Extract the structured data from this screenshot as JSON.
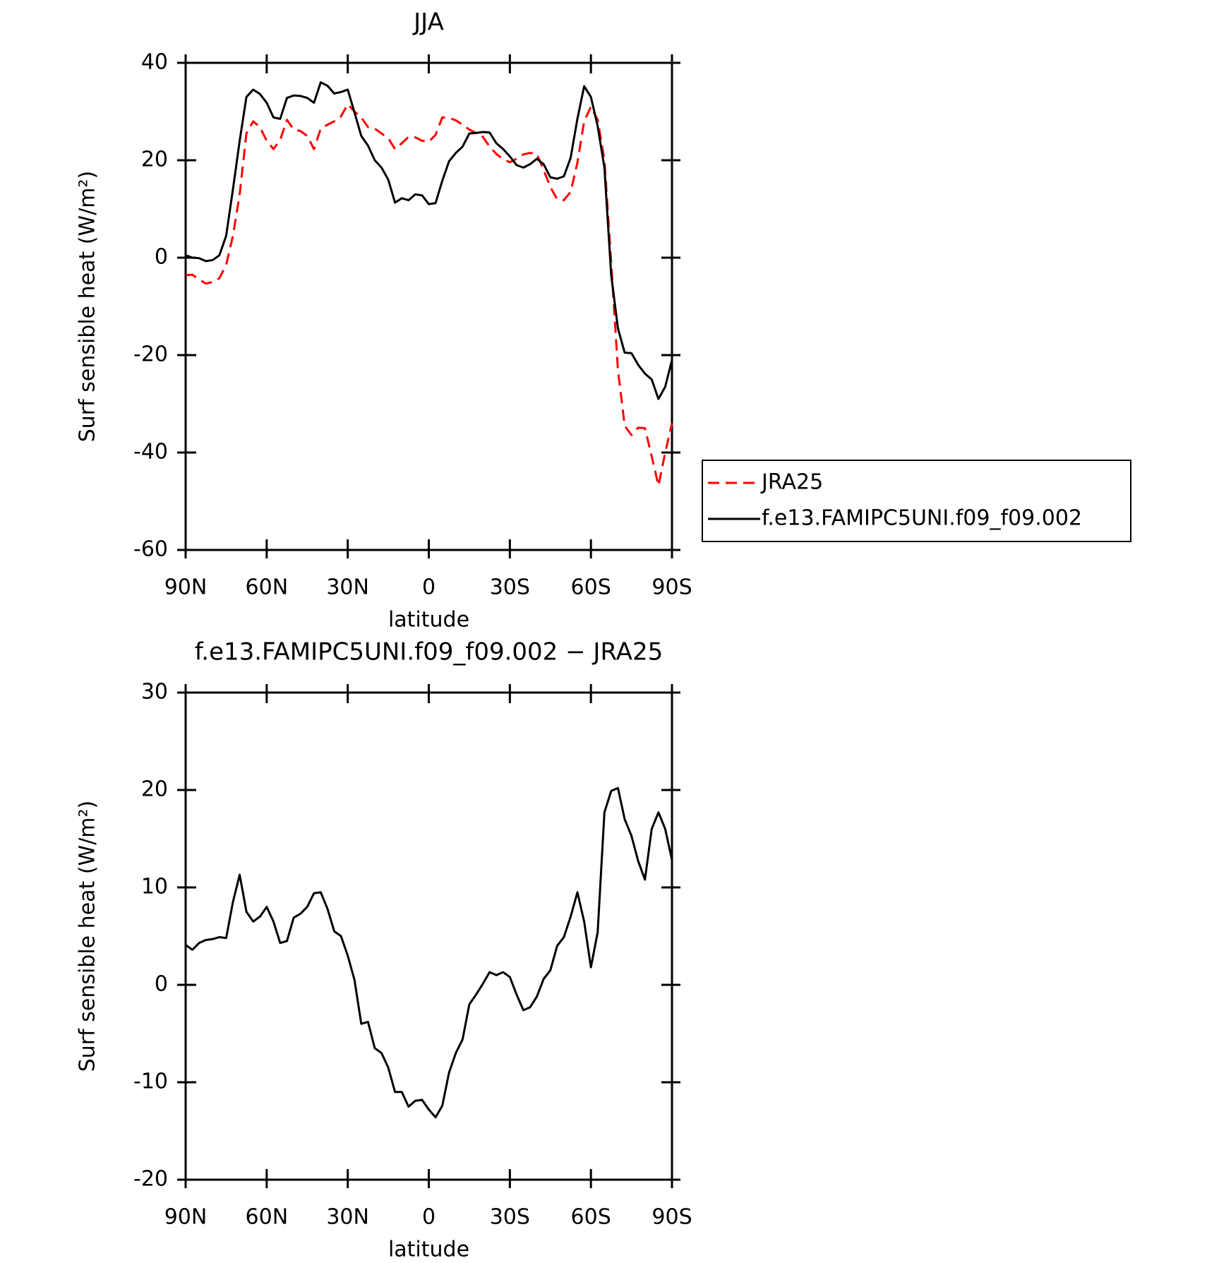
{
  "chart_data": [
    {
      "type": "line",
      "title": "JJA",
      "xlabel": "latitude",
      "ylabel": "Surf sensible heat (W/m²)",
      "x": [
        90,
        87.5,
        85,
        82.5,
        80,
        77.5,
        75,
        72.5,
        70,
        67.5,
        65,
        62.5,
        60,
        57.5,
        55,
        52.5,
        50,
        47.5,
        45,
        42.5,
        40,
        37.5,
        35,
        32.5,
        30,
        27.5,
        25,
        22.5,
        20,
        17.5,
        15,
        12.5,
        10,
        7.5,
        5,
        2.5,
        0,
        -2.5,
        -5,
        -7.5,
        -10,
        -12.5,
        -15,
        -17.5,
        -20,
        -22.5,
        -25,
        -27.5,
        -30,
        -32.5,
        -35,
        -37.5,
        -40,
        -42.5,
        -45,
        -47.5,
        -50,
        -52.5,
        -55,
        -57.5,
        -60,
        -62.5,
        -65,
        -67.5,
        -70,
        -72.5,
        -75,
        -77.5,
        -80,
        -82.5,
        -85,
        -87.5,
        -90
      ],
      "xlim": [
        90,
        -90
      ],
      "xticks": [
        {
          "value": 90,
          "label": "90N"
        },
        {
          "value": 60,
          "label": "60N"
        },
        {
          "value": 30,
          "label": "30N"
        },
        0,
        {
          "value": -30,
          "label": "30S"
        },
        {
          "value": -60,
          "label": "60S"
        },
        {
          "value": -90,
          "label": "90S"
        }
      ],
      "ylim": [
        -60,
        40
      ],
      "yticks": [
        -60,
        -40,
        -20,
        0,
        20,
        40
      ],
      "legend": "outside-right",
      "series": [
        {
          "name": "JRA25",
          "color": "#ff0000",
          "dash": true,
          "values": [
            -3.6,
            -3.5,
            -4.5,
            -5.3,
            -5,
            -4.2,
            -1.5,
            4.5,
            13,
            25.5,
            28,
            26.8,
            24,
            22.3,
            24.2,
            28.3,
            26.3,
            26,
            25,
            22.3,
            26.5,
            27.3,
            28,
            29,
            31.5,
            30,
            28.8,
            26.8,
            26.5,
            25.5,
            24.5,
            22.3,
            23.5,
            24.8,
            24.7,
            24,
            23.8,
            25.2,
            28.8,
            28.7,
            28.2,
            27.3,
            26.3,
            25.6,
            24.8,
            22.8,
            21.3,
            20.2,
            19.6,
            20.3,
            21.2,
            21.5,
            21.3,
            18,
            14.5,
            12,
            11.8,
            13.5,
            19.5,
            28,
            31,
            28.3,
            20,
            -1,
            -23,
            -34.5,
            -36.4,
            -34.9,
            -35,
            -40.8,
            -46.8,
            -40,
            -34
          ]
        },
        {
          "name": "f.e13.FAMIPC5UNI.f09_f09.002",
          "color": "#000000",
          "dash": false,
          "values": [
            0.5,
            0,
            -0.1,
            -0.7,
            -0.5,
            0.5,
            4.5,
            14,
            24,
            33,
            34.5,
            33.6,
            31.8,
            28.8,
            28.5,
            32.8,
            33.3,
            33.2,
            32.8,
            31.8,
            36,
            35.3,
            33.7,
            34,
            34.5,
            29.8,
            25,
            23,
            20,
            18.5,
            16,
            11.3,
            12.2,
            11.8,
            13,
            12.8,
            11,
            11.2,
            15.8,
            19.8,
            21.5,
            22.8,
            25.5,
            25.6,
            25.8,
            25.7,
            23.5,
            22.3,
            20.8,
            19,
            18.5,
            19.2,
            20.3,
            19.2,
            16.5,
            16.2,
            16.7,
            20.5,
            28.5,
            35.2,
            33,
            27,
            18.5,
            -3.5,
            -14.5,
            -19.5,
            -19.6,
            -22,
            -23.8,
            -25,
            -29,
            -26.5,
            -21
          ]
        }
      ]
    },
    {
      "type": "line",
      "title": "f.e13.FAMIPC5UNI.f09_f09.002 − JRA25",
      "xlabel": "latitude",
      "ylabel": "Surf sensible heat (W/m²)",
      "x": [
        90,
        87.5,
        85,
        82.5,
        80,
        77.5,
        75,
        72.5,
        70,
        67.5,
        65,
        62.5,
        60,
        57.5,
        55,
        52.5,
        50,
        47.5,
        45,
        42.5,
        40,
        37.5,
        35,
        32.5,
        30,
        27.5,
        25,
        22.5,
        20,
        17.5,
        15,
        12.5,
        10,
        7.5,
        5,
        2.5,
        0,
        -2.5,
        -5,
        -7.5,
        -10,
        -12.5,
        -15,
        -17.5,
        -20,
        -22.5,
        -25,
        -27.5,
        -30,
        -32.5,
        -35,
        -37.5,
        -40,
        -42.5,
        -45,
        -47.5,
        -50,
        -52.5,
        -55,
        -57.5,
        -60,
        -62.5,
        -65,
        -67.5,
        -70,
        -72.5,
        -75,
        -77.5,
        -80,
        -82.5,
        -85,
        -87.5,
        -90
      ],
      "xlim": [
        90,
        -90
      ],
      "xticks": [
        {
          "value": 90,
          "label": "90N"
        },
        {
          "value": 60,
          "label": "60N"
        },
        {
          "value": 30,
          "label": "30N"
        },
        0,
        {
          "value": -30,
          "label": "30S"
        },
        {
          "value": -60,
          "label": "60S"
        },
        {
          "value": -90,
          "label": "90S"
        }
      ],
      "ylim": [
        -20,
        30
      ],
      "yticks": [
        -20,
        -10,
        0,
        10,
        20,
        30
      ],
      "series": [
        {
          "color": "#000000",
          "dash": false,
          "values": [
            4.1,
            3.6,
            4.3,
            4.6,
            4.7,
            4.9,
            4.8,
            8.5,
            11.3,
            7.5,
            6.5,
            7,
            8,
            6.5,
            4.3,
            4.5,
            6.9,
            7.3,
            8,
            9.4,
            9.5,
            7.8,
            5.5,
            5,
            3,
            0.5,
            -4,
            -3.8,
            -6.5,
            -7,
            -8.5,
            -11,
            -11,
            -12.5,
            -11.9,
            -11.8,
            -12.8,
            -13.6,
            -12.4,
            -9,
            -7,
            -5.6,
            -2,
            -1,
            0.1,
            1.3,
            1,
            1.3,
            0.8,
            -1,
            -2.6,
            -2.3,
            -1.2,
            0.6,
            1.5,
            4,
            4.9,
            7,
            9.5,
            6.5,
            1.8,
            5.4,
            17.7,
            19.9,
            20.2,
            17,
            15.3,
            12.7,
            10.8,
            16,
            17.7,
            16,
            12.8
          ]
        }
      ]
    }
  ]
}
